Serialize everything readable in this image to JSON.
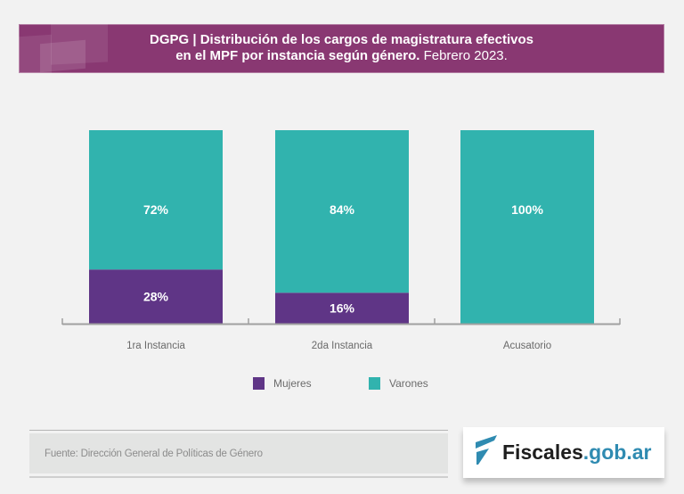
{
  "header": {
    "title_line1": "DGPG | Distribución de los cargos de magistratura efectivos",
    "title_line2_bold": "en el MPF por instancia según género.",
    "title_line2_regular": "Febrero 2023.",
    "background_color": "#893872"
  },
  "chart_data": {
    "type": "bar",
    "stacked": true,
    "title": "DGPG | Distribución de los cargos de magistratura efectivos en el MPF por instancia según género. Febrero 2023.",
    "xlabel": "",
    "ylabel": "",
    "ylim": [
      0,
      100
    ],
    "unit": "%",
    "grid": false,
    "legend": "bottom",
    "categories": [
      "1ra Instancia",
      "2da Instancia",
      "Acusatorio"
    ],
    "series": [
      {
        "name": "Mujeres",
        "values": [
          28,
          16,
          0
        ],
        "color": "#5f3586",
        "labels": [
          "28%",
          "16%",
          ""
        ]
      },
      {
        "name": "Varones",
        "values": [
          72,
          84,
          100
        ],
        "color": "#31b3ae",
        "labels": [
          "72%",
          "84%",
          "100%"
        ]
      }
    ]
  },
  "footer": {
    "source": "Fuente: Dirección General de Políticas de Género",
    "logo": {
      "icon": "fiscales-f-icon",
      "name": "Fiscales",
      "domain": ".gob.ar",
      "name_color": "#1e1e1e",
      "accent_color": "#2f8bb1"
    }
  }
}
